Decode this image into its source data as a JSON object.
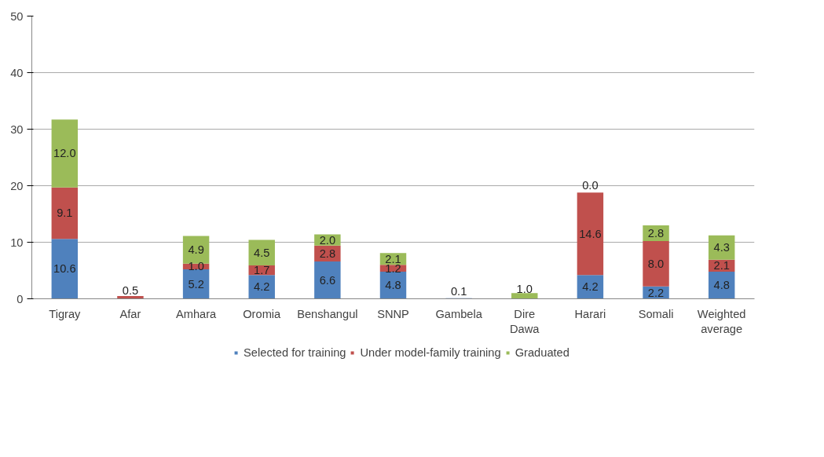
{
  "chart_data": {
    "type": "bar",
    "stacked": true,
    "categories": [
      "Tigray",
      "Afar",
      "Amhara",
      "Oromia",
      "Benshangul",
      "SNNP",
      "Gambela",
      "Dire Dawa",
      "Harari",
      "Somali",
      "Weighted average"
    ],
    "series": [
      {
        "name": "Selected for training",
        "color": "#4f81bd",
        "values": [
          10.6,
          0,
          5.2,
          4.2,
          6.6,
          4.8,
          0.1,
          0,
          4.2,
          2.2,
          4.8
        ],
        "value_labels": [
          "10.6",
          null,
          "5.2",
          "4.2",
          "6.6",
          "4.8",
          "0.1",
          null,
          "4.2",
          "2.2",
          "4.8"
        ]
      },
      {
        "name": "Under model-family training",
        "color": "#c0504d",
        "values": [
          9.1,
          0.5,
          1.0,
          1.7,
          2.8,
          1.2,
          0,
          0,
          14.6,
          8.0,
          2.1
        ],
        "value_labels": [
          "9.1",
          "0.5",
          "1.0",
          "1.7",
          "2.8",
          "1.2",
          null,
          null,
          "14.6",
          "8.0",
          "2.1"
        ]
      },
      {
        "name": "Graduated",
        "color": "#9bbb59",
        "values": [
          12.0,
          0,
          4.9,
          4.5,
          2.0,
          2.1,
          0,
          1.0,
          0.0,
          2.8,
          4.3
        ],
        "value_labels": [
          "12.0",
          null,
          "4.9",
          "4.5",
          "2.0",
          "2.1",
          null,
          "1.0",
          "0.0",
          "2.8",
          "4.3"
        ]
      }
    ],
    "ylim": [
      0,
      50
    ],
    "yticks": [
      0,
      10,
      20,
      30,
      40,
      50
    ],
    "grid": "y",
    "legend": "bottom"
  }
}
